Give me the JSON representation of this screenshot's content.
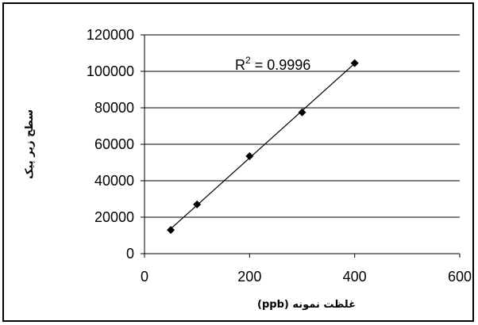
{
  "chart_data": {
    "type": "scatter",
    "title": "",
    "xlabel": "غلظت نمونه (ppb)",
    "ylabel": "سطح زیر پیک",
    "xlim": [
      0,
      600
    ],
    "ylim": [
      0,
      120000
    ],
    "x_ticks": [
      "0",
      "200",
      "400",
      "600"
    ],
    "y_ticks": [
      "0",
      "20000",
      "40000",
      "60000",
      "80000",
      "100000",
      "120000"
    ],
    "grid": "horizontal",
    "series": [
      {
        "x": [
          50,
          100,
          200,
          300,
          400
        ],
        "y": [
          13000,
          27000,
          53500,
          77500,
          104500
        ]
      }
    ],
    "trendline": {
      "type": "linear",
      "r2_label": "R",
      "r2_superscript": "2",
      "r2_value": " = 0.9996"
    },
    "colors": {
      "marker": "#000000",
      "gridline": "#000000",
      "line": "#000000"
    }
  }
}
